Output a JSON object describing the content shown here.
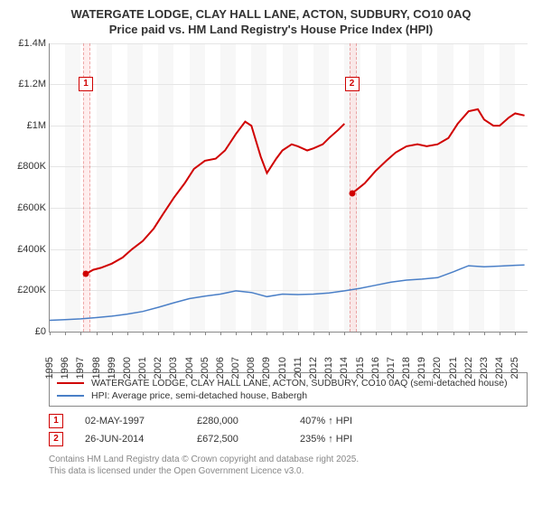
{
  "title_line1": "WATERGATE LODGE, CLAY HALL LANE, ACTON, SUDBURY, CO10 0AQ",
  "title_line2": "Price paid vs. HM Land Registry's House Price Index (HPI)",
  "chart": {
    "type": "line",
    "background_color": "#ffffff",
    "alt_band_color": "#f7f7f7",
    "grid_color": "#e5e5e5",
    "axis_color": "#888888",
    "marker_band_color": "rgba(255,200,200,0.3)",
    "x": {
      "min": 1995,
      "max": 2025.8,
      "ticks": [
        1995,
        1996,
        1997,
        1998,
        1999,
        2000,
        2001,
        2002,
        2003,
        2004,
        2005,
        2006,
        2007,
        2008,
        2009,
        2010,
        2011,
        2012,
        2013,
        2014,
        2015,
        2016,
        2017,
        2018,
        2019,
        2020,
        2021,
        2022,
        2023,
        2024,
        2025
      ],
      "label_fontsize": 11
    },
    "y": {
      "min": 0,
      "max": 1400000,
      "ticks": [
        {
          "v": 0,
          "label": "£0"
        },
        {
          "v": 200000,
          "label": "£200K"
        },
        {
          "v": 400000,
          "label": "£400K"
        },
        {
          "v": 600000,
          "label": "£600K"
        },
        {
          "v": 800000,
          "label": "£800K"
        },
        {
          "v": 1000000,
          "label": "£1M"
        },
        {
          "v": 1200000,
          "label": "£1.2M"
        },
        {
          "v": 1400000,
          "label": "£1.4M"
        }
      ],
      "label_fontsize": 11
    },
    "series": [
      {
        "id": "property",
        "label": "WATERGATE LODGE, CLAY HALL LANE, ACTON, SUDBURY, CO10 0AQ (semi-detached house)",
        "color": "#d00000",
        "line_width": 2,
        "data": [
          [
            1997.33,
            280000
          ],
          [
            1997.8,
            300000
          ],
          [
            1998.3,
            310000
          ],
          [
            1999,
            330000
          ],
          [
            1999.7,
            360000
          ],
          [
            2000.3,
            400000
          ],
          [
            2001,
            440000
          ],
          [
            2001.7,
            500000
          ],
          [
            2002.3,
            570000
          ],
          [
            2003,
            650000
          ],
          [
            2003.7,
            720000
          ],
          [
            2004.3,
            790000
          ],
          [
            2005,
            830000
          ],
          [
            2005.7,
            840000
          ],
          [
            2006.3,
            880000
          ],
          [
            2007,
            960000
          ],
          [
            2007.6,
            1020000
          ],
          [
            2008,
            1000000
          ],
          [
            2008.6,
            850000
          ],
          [
            2009,
            770000
          ],
          [
            2009.6,
            840000
          ],
          [
            2010,
            880000
          ],
          [
            2010.6,
            910000
          ],
          [
            2011,
            900000
          ],
          [
            2011.6,
            880000
          ],
          [
            2012,
            890000
          ],
          [
            2012.6,
            910000
          ],
          [
            2013,
            940000
          ],
          [
            2013.6,
            980000
          ],
          [
            2014,
            1010000
          ],
          [
            2014.48,
            672500
          ],
          [
            2014.8,
            690000
          ],
          [
            2015.3,
            720000
          ],
          [
            2016,
            780000
          ],
          [
            2016.7,
            830000
          ],
          [
            2017.3,
            870000
          ],
          [
            2018,
            900000
          ],
          [
            2018.7,
            910000
          ],
          [
            2019.3,
            900000
          ],
          [
            2020,
            910000
          ],
          [
            2020.7,
            940000
          ],
          [
            2021.3,
            1010000
          ],
          [
            2022,
            1070000
          ],
          [
            2022.6,
            1080000
          ],
          [
            2023,
            1030000
          ],
          [
            2023.6,
            1000000
          ],
          [
            2024,
            1000000
          ],
          [
            2024.6,
            1040000
          ],
          [
            2025,
            1060000
          ],
          [
            2025.6,
            1050000
          ]
        ],
        "break_at_index": 30
      },
      {
        "id": "hpi",
        "label": "HPI: Average price, semi-detached house, Babergh",
        "color": "#4a7fc7",
        "line_width": 1.5,
        "data": [
          [
            1995,
            55000
          ],
          [
            1996,
            58000
          ],
          [
            1997,
            62000
          ],
          [
            1998,
            68000
          ],
          [
            1999,
            75000
          ],
          [
            2000,
            85000
          ],
          [
            2001,
            98000
          ],
          [
            2002,
            118000
          ],
          [
            2003,
            140000
          ],
          [
            2004,
            160000
          ],
          [
            2005,
            172000
          ],
          [
            2006,
            182000
          ],
          [
            2007,
            198000
          ],
          [
            2008,
            190000
          ],
          [
            2009,
            170000
          ],
          [
            2010,
            182000
          ],
          [
            2011,
            180000
          ],
          [
            2012,
            182000
          ],
          [
            2013,
            188000
          ],
          [
            2014,
            198000
          ],
          [
            2015,
            210000
          ],
          [
            2016,
            225000
          ],
          [
            2017,
            240000
          ],
          [
            2018,
            250000
          ],
          [
            2019,
            255000
          ],
          [
            2020,
            262000
          ],
          [
            2021,
            290000
          ],
          [
            2022,
            320000
          ],
          [
            2023,
            315000
          ],
          [
            2024,
            318000
          ],
          [
            2025,
            322000
          ],
          [
            2025.6,
            324000
          ]
        ]
      }
    ],
    "sale_markers": [
      {
        "n": "1",
        "x": 1997.33,
        "y": 280000,
        "box_y": 1200000
      },
      {
        "n": "2",
        "x": 2014.48,
        "y": 672500,
        "box_y": 1200000
      }
    ]
  },
  "legend": {
    "items": [
      {
        "color": "#d00000",
        "width": 2,
        "label_key": "chart.series.0.label"
      },
      {
        "color": "#4a7fc7",
        "width": 1.5,
        "label_key": "chart.series.1.label"
      }
    ]
  },
  "sales": [
    {
      "n": "1",
      "date": "02-MAY-1997",
      "price": "£280,000",
      "pct": "407% ↑ HPI"
    },
    {
      "n": "2",
      "date": "26-JUN-2014",
      "price": "£672,500",
      "pct": "235% ↑ HPI"
    }
  ],
  "footer_line1": "Contains HM Land Registry data © Crown copyright and database right 2025.",
  "footer_line2": "This data is licensed under the Open Government Licence v3.0."
}
